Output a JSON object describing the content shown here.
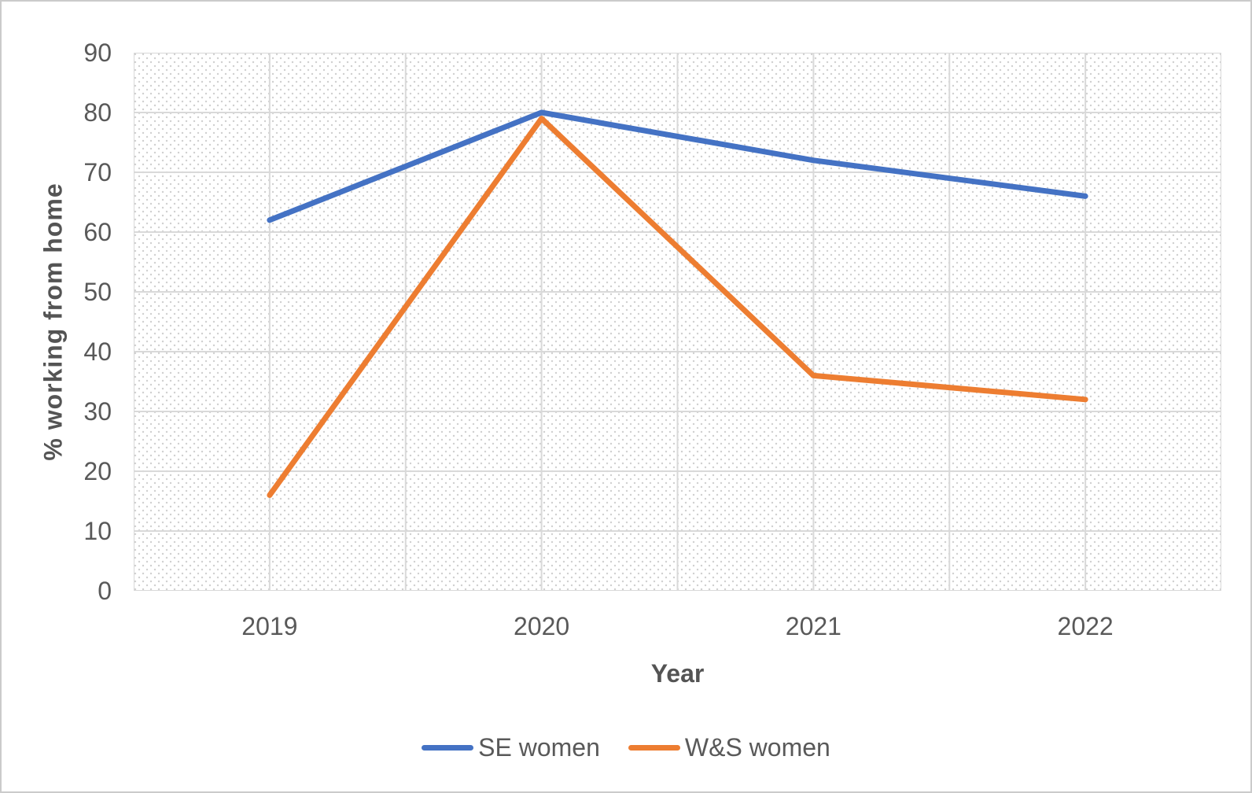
{
  "chart_data": {
    "type": "line",
    "title": "",
    "categories": [
      "2019",
      "2020",
      "2021",
      "2022"
    ],
    "series": [
      {
        "name": "SE women",
        "color": "#4472C4",
        "values": [
          62,
          80,
          72,
          66
        ]
      },
      {
        "name": "W&S women",
        "color": "#ED7D31",
        "values": [
          16,
          79,
          36,
          32
        ]
      }
    ],
    "xlabel": "Year",
    "ylabel": "% working from home",
    "ylim": [
      0,
      90
    ],
    "ytick_step": 10,
    "grid": "major-horizontal-and-vertical",
    "legend_position": "bottom",
    "plot_background": "diagonal-dot-hatch"
  },
  "colors": {
    "tick_text": "#595959",
    "axis_title_text": "#545454",
    "gridline": "#d9d9d9",
    "pattern_dot": "#d0d0d0",
    "frame_border": "#cbcbcb",
    "background": "#ffffff"
  }
}
